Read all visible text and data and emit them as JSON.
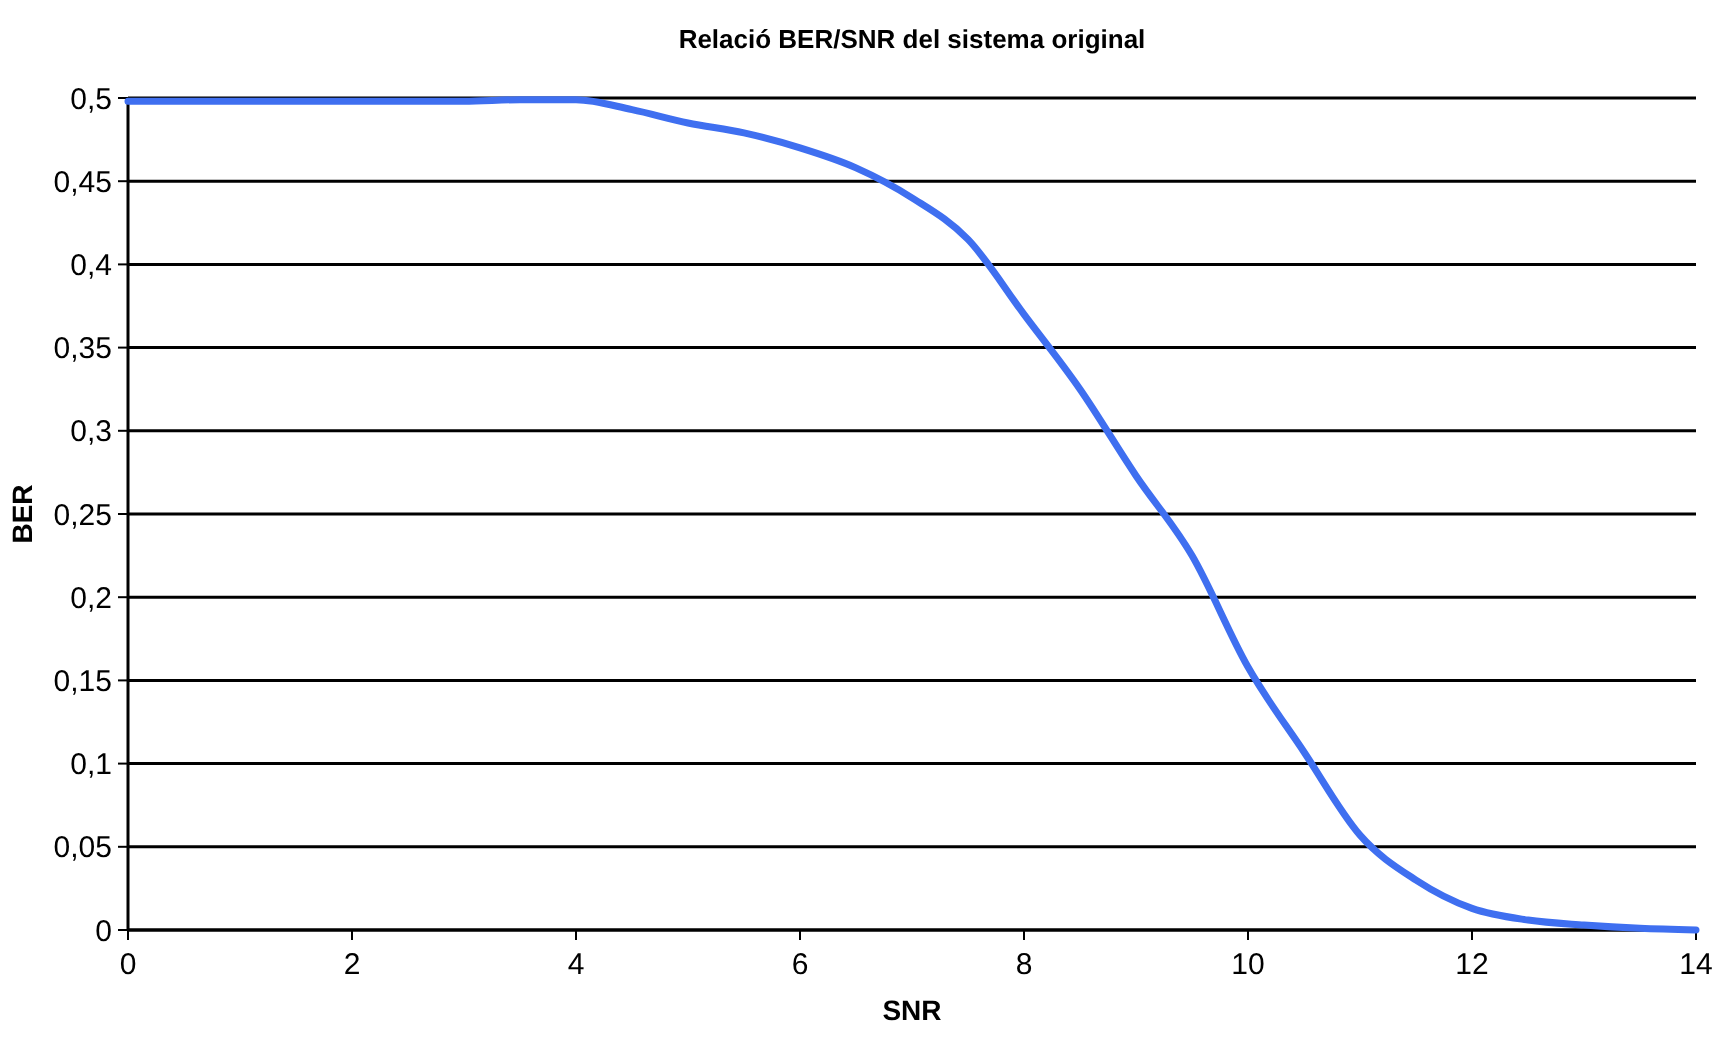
{
  "chart_data": {
    "type": "line",
    "title": "Relació BER/SNR del sistema original",
    "xlabel": "SNR",
    "ylabel": "BER",
    "xlim": [
      0,
      14
    ],
    "xticks": [
      0,
      2,
      4,
      6,
      8,
      10,
      12,
      14
    ],
    "ylim": [
      0,
      0.5
    ],
    "yticks": [
      0,
      {
        "value": 0.05,
        "label": "0,05"
      },
      {
        "value": 0.1,
        "label": "0,1"
      },
      {
        "value": 0.15,
        "label": "0,15"
      },
      {
        "value": 0.2,
        "label": "0,2"
      },
      {
        "value": 0.25,
        "label": "0,25"
      },
      {
        "value": 0.3,
        "label": "0,3"
      },
      {
        "value": 0.35,
        "label": "0,35"
      },
      {
        "value": 0.4,
        "label": "0,4"
      },
      {
        "value": 0.45,
        "label": "0,45"
      },
      {
        "value": 0.5,
        "label": "0,5"
      }
    ],
    "grid": "y",
    "marker": "none",
    "line_style": "solid",
    "series": [
      {
        "color": "#3f6ff0",
        "x": [
          0,
          1,
          2,
          3,
          3.5,
          4,
          4.5,
          5,
          5.5,
          6,
          6.5,
          7,
          7.5,
          8,
          8.5,
          9,
          9.5,
          10,
          10.5,
          11,
          11.5,
          12,
          12.5,
          13,
          13.5,
          14
        ],
        "values": [
          0.498,
          0.498,
          0.498,
          0.498,
          0.499,
          0.499,
          0.493,
          0.485,
          0.479,
          0.47,
          0.458,
          0.44,
          0.415,
          0.37,
          0.325,
          0.273,
          0.225,
          0.158,
          0.107,
          0.057,
          0.03,
          0.013,
          0.006,
          0.003,
          0.001,
          0
        ]
      }
    ]
  }
}
